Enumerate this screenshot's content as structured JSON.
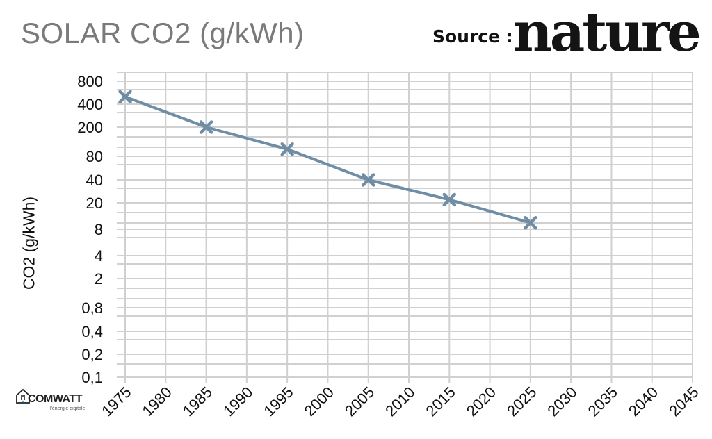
{
  "header": {
    "title": "SOLAR CO2 (g/kWh)",
    "source_label": "Source :",
    "source_logo_text": "nature"
  },
  "branding": {
    "name": "COMWATT",
    "tagline": "l'énergie digitale"
  },
  "chart_data": {
    "type": "line",
    "title": "SOLAR CO2 (g/kWh)",
    "xlabel": "",
    "ylabel": "CO2 (g/kWh)",
    "yscale": "log",
    "grid": true,
    "legend": "none",
    "line_color": "#6f8ea6",
    "marker": "x",
    "x_ticks": [
      "1975",
      "1980",
      "1985",
      "1990",
      "1995",
      "2000",
      "2005",
      "2010",
      "2015",
      "2020",
      "2025",
      "2030",
      "2035",
      "2040",
      "2045"
    ],
    "y_ticks": [
      {
        "value": 800,
        "label": "800"
      },
      {
        "value": 400,
        "label": "400"
      },
      {
        "value": 200,
        "label": "200"
      },
      {
        "value": 80,
        "label": "80"
      },
      {
        "value": 40,
        "label": "40"
      },
      {
        "value": 20,
        "label": "20"
      },
      {
        "value": 8,
        "label": "8"
      },
      {
        "value": 4,
        "label": "4"
      },
      {
        "value": 2,
        "label": "2"
      },
      {
        "value": 0.8,
        "label": "0,8"
      },
      {
        "value": 0.4,
        "label": "0,4"
      },
      {
        "value": 0.2,
        "label": "0,2"
      },
      {
        "value": 0.1,
        "label": "0,1"
      }
    ],
    "xlim": [
      1975,
      2045
    ],
    "ylim": [
      0.1,
      1000
    ],
    "series": [
      {
        "x": [
          1975,
          1985,
          1995,
          2005,
          2015,
          2025
        ],
        "values": [
          500,
          200,
          100,
          40,
          22,
          10
        ]
      }
    ]
  }
}
